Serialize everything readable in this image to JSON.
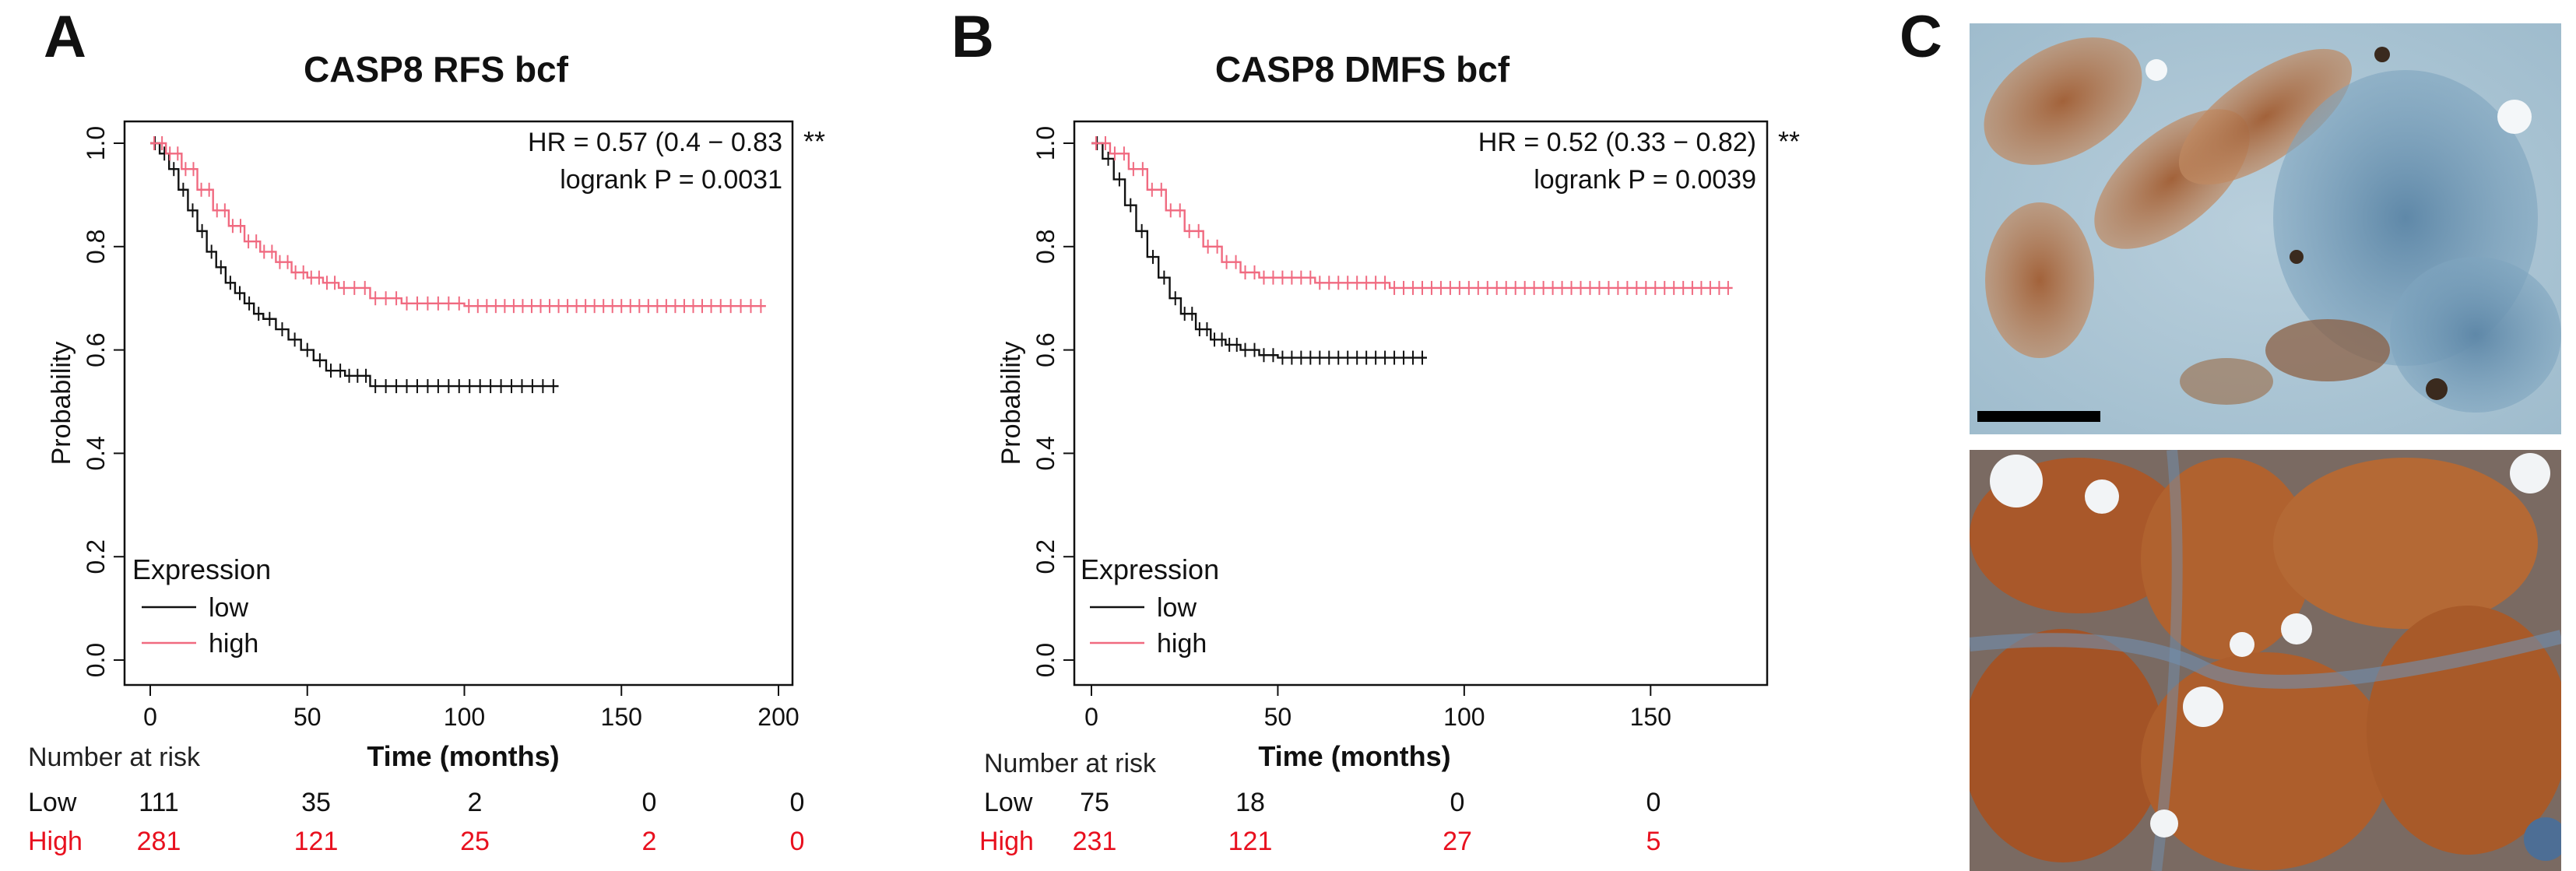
{
  "panels": {
    "a": "A",
    "b": "B",
    "c": "C"
  },
  "chart_data": [
    {
      "type": "line",
      "subtype": "kaplan-meier",
      "title": "CASP8 RFS bcf",
      "xlabel": "Time (months)",
      "ylabel": "Probability",
      "xlim": [
        0,
        200
      ],
      "ylim": [
        0,
        1
      ],
      "xticks": [
        "0",
        "50",
        "100",
        "150",
        "200"
      ],
      "yticks": [
        "0.0",
        "0.2",
        "0.4",
        "0.6",
        "0.8",
        "1.0"
      ],
      "hr_text": "HR = 0.57 (0.4 − 0.83",
      "logrank_text": "logrank P = 0.0031",
      "significance": "**",
      "legend_title": "Expression",
      "series": [
        {
          "name": "low",
          "color": "#111111",
          "x": [
            0,
            3,
            6,
            9,
            12,
            15,
            18,
            21,
            24,
            27,
            30,
            33,
            36,
            40,
            44,
            48,
            52,
            56,
            62,
            70,
            80,
            90,
            100,
            110,
            120,
            130
          ],
          "y": [
            1.0,
            0.98,
            0.95,
            0.91,
            0.87,
            0.83,
            0.79,
            0.76,
            0.73,
            0.71,
            0.69,
            0.67,
            0.66,
            0.64,
            0.62,
            0.6,
            0.58,
            0.56,
            0.55,
            0.53,
            0.53,
            0.53,
            0.53,
            0.53,
            0.53,
            0.53
          ]
        },
        {
          "name": "high",
          "color": "#f06a80",
          "x": [
            0,
            5,
            10,
            15,
            20,
            25,
            30,
            35,
            40,
            45,
            50,
            55,
            60,
            70,
            80,
            90,
            100,
            120,
            140,
            160,
            180,
            196
          ],
          "y": [
            1.0,
            0.98,
            0.95,
            0.91,
            0.87,
            0.84,
            0.81,
            0.79,
            0.77,
            0.75,
            0.74,
            0.73,
            0.72,
            0.7,
            0.69,
            0.69,
            0.685,
            0.685,
            0.685,
            0.685,
            0.685,
            0.685
          ]
        }
      ],
      "risk_table": {
        "header": "Number at risk",
        "rows": [
          {
            "label": "Low",
            "values": [
              "111",
              "35",
              "2",
              "0",
              "0"
            ]
          },
          {
            "label": "High",
            "values": [
              "281",
              "121",
              "25",
              "2",
              "0"
            ]
          }
        ]
      }
    },
    {
      "type": "line",
      "subtype": "kaplan-meier",
      "title": "CASP8 DMFS bcf",
      "xlabel": "Time (months)",
      "ylabel": "Probability",
      "xlim": [
        0,
        175
      ],
      "ylim": [
        0,
        1
      ],
      "xticks": [
        "0",
        "50",
        "100",
        "150"
      ],
      "yticks": [
        "0.0",
        "0.2",
        "0.4",
        "0.6",
        "0.8",
        "1.0"
      ],
      "hr_text": "HR = 0.52 (0.33 − 0.82)",
      "logrank_text": "logrank P = 0.0039",
      "significance": "**",
      "legend_title": "Expression",
      "series": [
        {
          "name": "low",
          "color": "#111111",
          "x": [
            0,
            3,
            6,
            9,
            12,
            15,
            18,
            21,
            24,
            28,
            32,
            36,
            40,
            45,
            50,
            60,
            70,
            80,
            90
          ],
          "y": [
            1.0,
            0.97,
            0.93,
            0.88,
            0.83,
            0.78,
            0.74,
            0.7,
            0.67,
            0.64,
            0.62,
            0.61,
            0.6,
            0.59,
            0.585,
            0.585,
            0.585,
            0.585,
            0.585
          ]
        },
        {
          "name": "high",
          "color": "#f06a80",
          "x": [
            0,
            5,
            10,
            15,
            20,
            25,
            30,
            35,
            40,
            45,
            50,
            60,
            70,
            80,
            100,
            120,
            140,
            160,
            172
          ],
          "y": [
            1.0,
            0.98,
            0.95,
            0.91,
            0.87,
            0.83,
            0.8,
            0.77,
            0.75,
            0.74,
            0.74,
            0.73,
            0.73,
            0.72,
            0.72,
            0.72,
            0.72,
            0.72,
            0.72
          ]
        }
      ],
      "risk_table": {
        "header": "Number at risk",
        "rows": [
          {
            "label": "Low",
            "values": [
              "75",
              "18",
              "0",
              "0"
            ]
          },
          {
            "label": "High",
            "values": [
              "231",
              "121",
              "27",
              "5"
            ]
          }
        ]
      }
    }
  ]
}
